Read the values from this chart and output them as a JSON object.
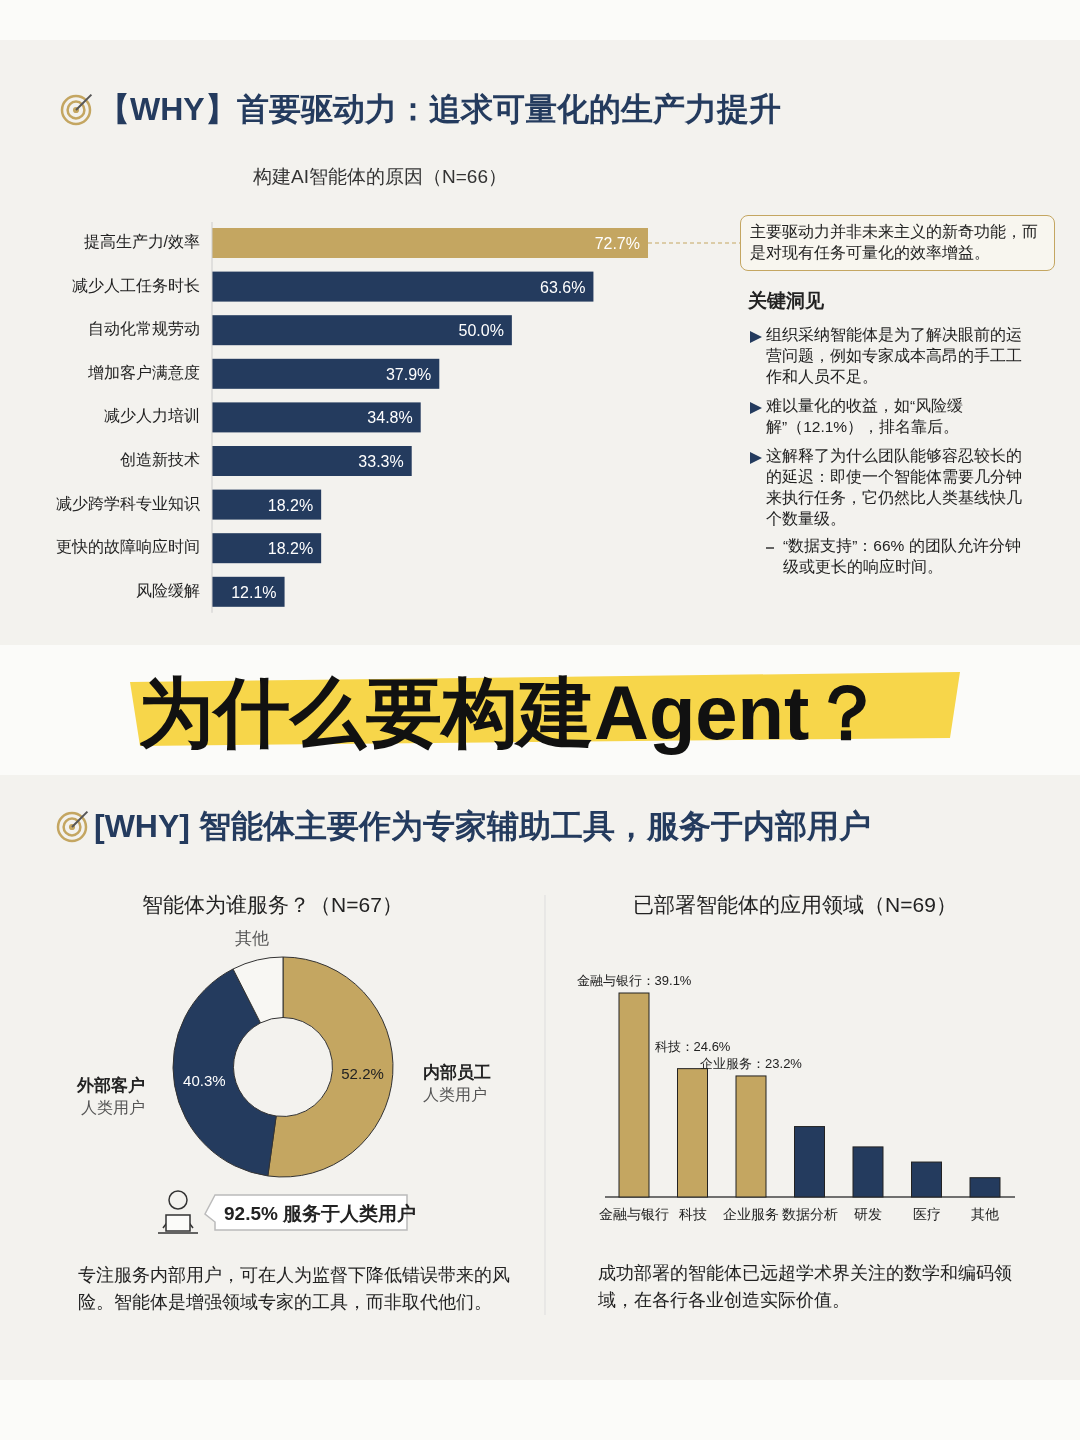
{
  "chart_data": [
    {
      "type": "bar",
      "orientation": "horizontal",
      "title": "构建AI智能体的原因（N=66）",
      "categories": [
        "提高生产力/效率",
        "减少人工任务时长",
        "自动化常规劳动",
        "增加客户满意度",
        "减少人力培训",
        "创造新技术",
        "减少跨学科专业知识",
        "更快的故障响应时间",
        "风险缓解"
      ],
      "values": [
        72.7,
        63.6,
        50.0,
        37.9,
        34.8,
        33.3,
        18.2,
        18.2,
        12.1
      ],
      "value_labels": [
        "72.7%",
        "63.6%",
        "50.0%",
        "37.9%",
        "34.8%",
        "33.3%",
        "18.2%",
        "18.2%",
        "12.1%"
      ],
      "colors": [
        "#c4a661",
        "#243b5e",
        "#243b5e",
        "#243b5e",
        "#243b5e",
        "#243b5e",
        "#243b5e",
        "#243b5e",
        "#243b5e"
      ],
      "annotations": [
        "【WHY】首要驱动力：追求可量化的生产力提升",
        {
          "text": "主要驱动力并非未来主义的新奇功能，而是对现有任务可量化的效率增益。",
          "x": 72.7,
          "y": "提高生产力/效率"
        },
        "关键洞见",
        "组织采纳智能体是为了解决眼前的运营问题，例如专家成本高昂的手工工作和人员不足。",
        "难以量化的收益，如“风险缓解”（12.1%），排名靠后。",
        "这解释了为什么团队能够容忍较长的的延迟：即使一个智能体需要几分钟来执行任务，它仍然比人类基线快几个数量级。",
        "“数据支持”：66% 的团队允许分钟级或更长的响应时间。"
      ]
    },
    {
      "type": "donut",
      "title": "智能体为谁服务？（N=67）",
      "categories": [
        "内部员工",
        "外部客户",
        "其他"
      ],
      "values": [
        52.2,
        40.3,
        7.5
      ],
      "value_labels": [
        "52.2%",
        "40.3%",
        null
      ],
      "colors": [
        "#c4a661",
        "#243b5e",
        "#f8f7f3"
      ],
      "annotations": [
        "为什么要构建Agent？",
        "[WHY] 智能体主要作为专家辅助工具，服务于内部用户",
        "人类用户",
        "人类用户",
        "92.5% 服务于人类用户",
        "专注服务内部用户，可在人为监督下降低错误带来的风险。智能体是增强领域专家的工具，而非取代他们。"
      ]
    },
    {
      "type": "bar",
      "title": "已部署智能体的应用领域（N=69）",
      "categories": [
        "金融与银行",
        "科技",
        "企业服务",
        "数据分析",
        "研发",
        "医疗",
        "其他"
      ],
      "values": [
        39.1,
        24.6,
        23.2,
        13.5,
        9.6,
        6.7,
        3.7
      ],
      "value_labels": [
        "金融与银行：39.1%",
        "科技：24.6%",
        "企业服务：23.2%",
        null,
        null,
        null,
        null
      ],
      "colors": [
        "#c4a661",
        "#c4a661",
        "#c4a661",
        "#243b5e",
        "#243b5e",
        "#243b5e",
        "#243b5e"
      ],
      "annotations": [
        "成功部署的智能体已远超学术界关注的数学和编码领域，在各行各业创造实际价值。"
      ]
    }
  ]
}
